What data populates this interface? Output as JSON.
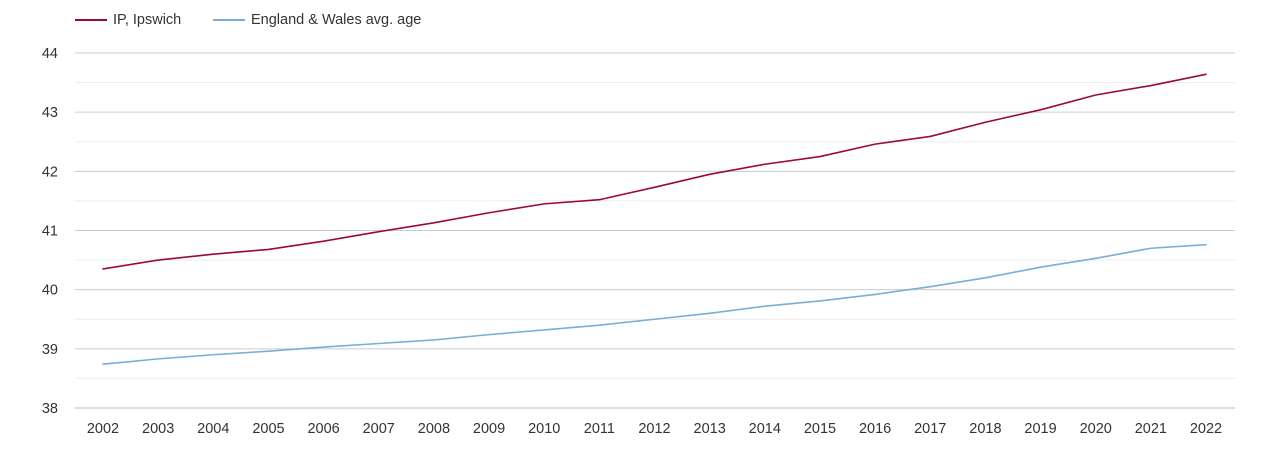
{
  "legend": {
    "items": [
      {
        "label": "IP, Ipswich",
        "color": "#9b0a35"
      },
      {
        "label": "England & Wales avg. age",
        "color": "#7aaed4"
      }
    ]
  },
  "chart_data": {
    "type": "line",
    "title": "",
    "xlabel": "",
    "ylabel": "",
    "x": [
      2002,
      2003,
      2004,
      2005,
      2006,
      2007,
      2008,
      2009,
      2010,
      2011,
      2012,
      2013,
      2014,
      2015,
      2016,
      2017,
      2018,
      2019,
      2020,
      2021,
      2022
    ],
    "ylim": [
      38,
      44
    ],
    "yticks": [
      38,
      39,
      40,
      41,
      42,
      43,
      44
    ],
    "grid": true,
    "minor_grid": true,
    "legend_position": "top-left",
    "series": [
      {
        "name": "IP, Ipswich",
        "color": "#9b0a35",
        "values": [
          40.35,
          40.5,
          40.6,
          40.68,
          40.82,
          40.98,
          41.13,
          41.3,
          41.45,
          41.52,
          41.73,
          41.95,
          42.12,
          42.25,
          42.46,
          42.59,
          42.83,
          43.04,
          43.29,
          43.45,
          43.64
        ]
      },
      {
        "name": "England & Wales avg. age",
        "color": "#7aaed4",
        "values": [
          38.74,
          38.83,
          38.9,
          38.96,
          39.03,
          39.09,
          39.15,
          39.24,
          39.32,
          39.4,
          39.5,
          39.6,
          39.72,
          39.81,
          39.92,
          40.05,
          40.2,
          40.38,
          40.53,
          40.7,
          40.76
        ]
      }
    ]
  }
}
